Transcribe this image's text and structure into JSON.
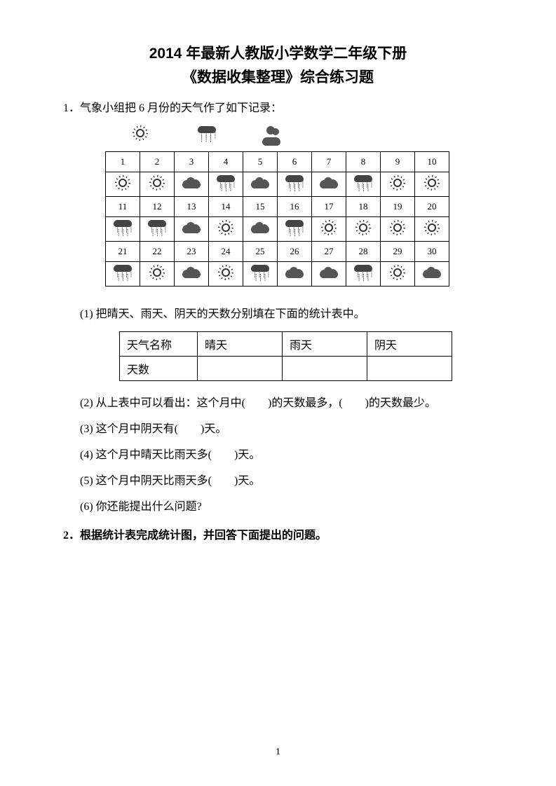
{
  "title_line1": "2014 年最新人教版小学数学二年级下册",
  "title_line2": "《数据收集整理》综合练习题",
  "q1": {
    "number": "1．",
    "text": "气象小组把 6 月份的天气作了如下记录："
  },
  "calendar": {
    "days": [
      "1",
      "2",
      "3",
      "4",
      "5",
      "6",
      "7",
      "8",
      "9",
      "10",
      "11",
      "12",
      "13",
      "14",
      "15",
      "16",
      "17",
      "18",
      "19",
      "20",
      "21",
      "22",
      "23",
      "24",
      "25",
      "26",
      "27",
      "28",
      "29",
      "30"
    ],
    "weather": [
      "sun",
      "sun",
      "cloud",
      "rain",
      "cloud",
      "rain",
      "cloud",
      "rain",
      "sun",
      "sun",
      "rain",
      "rain",
      "cloud",
      "sun",
      "cloud",
      "rain",
      "sun",
      "sun",
      "sun",
      "sun",
      "rain",
      "sun",
      "cloud",
      "sun",
      "rain",
      "cloud",
      "cloud",
      "rain",
      "sun",
      "cloud"
    ],
    "legend_order": [
      "sun",
      "rain",
      "cloud"
    ]
  },
  "sub1": {
    "label": "(1) 把晴天、雨天、阴天的天数分别填在下面的统计表中。"
  },
  "stats_table": {
    "headers": [
      "天气名称",
      "晴天",
      "雨天",
      "阴天"
    ],
    "row2_label": "天数"
  },
  "sub2": "(2) 从上表中可以看出：这个月中(　　)的天数最多，(　　)的天数最少。",
  "sub3": "(3) 这个月中阴天有(　　)天。",
  "sub4": "(4) 这个月中晴天比雨天多(　　)天。",
  "sub5": "(5) 这个月中阴天比雨天多(　　)天。",
  "sub6": "(6) 你还能提出什么问题?",
  "q2": {
    "number": "2．",
    "text": "根据统计表完成统计图，并回答下面提出的问题。"
  },
  "page_number": "1",
  "colors": {
    "text": "#000000",
    "background": "#ffffff",
    "icon_dark": "#444444",
    "border": "#000000"
  },
  "fonts": {
    "title_family": "SimHei",
    "body_family": "SimSun",
    "title_size_pt": 16,
    "body_size_pt": 12
  }
}
